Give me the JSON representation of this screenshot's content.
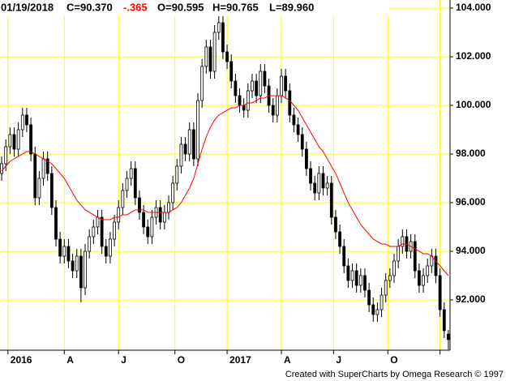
{
  "chart_data": {
    "type": "candlestick",
    "header": {
      "date": "01/19/2018",
      "close": "C=90.370",
      "change": "-.365",
      "open": "O=90.595",
      "high": "H=90.765",
      "low": "L=89.960"
    },
    "footer": "Created with SuperCharts by Omega Research © 1997",
    "ylim": [
      89.933,
      104.333
    ],
    "yticks": [
      {
        "value": 92,
        "label": "92.000"
      },
      {
        "value": 94,
        "label": "94.000"
      },
      {
        "value": 96,
        "label": "96.000"
      },
      {
        "value": 98,
        "label": "98.000"
      },
      {
        "value": 100,
        "label": "100.000"
      },
      {
        "value": 102,
        "label": "102.000"
      },
      {
        "value": 104,
        "label": "104.000"
      }
    ],
    "xlim": [
      -0.4,
      107.4
    ],
    "xticks": [
      {
        "value": 1.5,
        "label": "2016"
      },
      {
        "value": 15,
        "label": "A"
      },
      {
        "value": 28,
        "label": "J"
      },
      {
        "value": 41.5,
        "label": "O"
      },
      {
        "value": 54,
        "label": "2017"
      },
      {
        "value": 67,
        "label": "A"
      },
      {
        "value": 79.5,
        "label": "J"
      },
      {
        "value": 92.5,
        "label": "O"
      },
      {
        "value": 105,
        "label": null
      }
    ],
    "grid": true,
    "grid_color": "#ffff00",
    "up_color": "#ffffff",
    "down_color": "#000000",
    "open": [
      97.2,
      97.6,
      98.3,
      98.8,
      98.2,
      99.0,
      99.6,
      99.2,
      98.0,
      96.2,
      97.0,
      97.8,
      97.2,
      95.8,
      94.5,
      93.8,
      94.2,
      93.6,
      93.2,
      93.8,
      92.5,
      94.0,
      94.6,
      95.0,
      95.4,
      94.2,
      93.8,
      94.5,
      95.2,
      95.8,
      96.5,
      97.0,
      97.4,
      96.2,
      95.6,
      95.0,
      94.6,
      95.4,
      95.8,
      95.2,
      95.6,
      96.0,
      96.8,
      97.5,
      98.4,
      98.0,
      99.0,
      97.8,
      100.2,
      101.6,
      102.4,
      101.4,
      103.0,
      103.4,
      102.2,
      101.8,
      101.0,
      100.4,
      100.0,
      99.8,
      100.6,
      101.0,
      100.4,
      101.4,
      100.8,
      100.0,
      99.6,
      100.4,
      101.2,
      100.6,
      99.6,
      99.2,
      98.8,
      98.2,
      97.4,
      96.8,
      96.4,
      97.2,
      96.6,
      96.8,
      95.4,
      94.8,
      94.2,
      93.4,
      92.8,
      93.2,
      92.6,
      93.0,
      92.4,
      91.8,
      91.4,
      91.6,
      92.2,
      92.8,
      93.0,
      93.6,
      94.2,
      94.6,
      94.0,
      94.4,
      93.2,
      92.6,
      93.0,
      93.4,
      93.8,
      93.0,
      91.6,
      90.595
    ],
    "high": [
      97.9,
      98.6,
      99.1,
      99.1,
      99.3,
      99.9,
      99.9,
      99.5,
      98.3,
      97.3,
      98.1,
      98.1,
      97.5,
      96.1,
      94.8,
      94.5,
      94.5,
      93.9,
      94.1,
      94.1,
      94.3,
      94.9,
      95.3,
      95.7,
      95.7,
      94.5,
      94.8,
      95.5,
      96.1,
      96.8,
      97.3,
      97.7,
      97.7,
      96.5,
      95.9,
      95.3,
      95.7,
      96.1,
      96.1,
      95.9,
      96.3,
      97.1,
      97.8,
      98.7,
      98.7,
      99.3,
      99.3,
      100.5,
      101.9,
      102.7,
      102.7,
      103.3,
      103.7,
      103.7,
      102.5,
      102.1,
      101.3,
      100.7,
      100.3,
      100.9,
      101.3,
      101.3,
      101.7,
      101.7,
      101.1,
      100.3,
      100.7,
      101.5,
      101.5,
      100.9,
      99.9,
      99.5,
      99.1,
      98.5,
      97.7,
      97.1,
      97.5,
      97.5,
      97.1,
      97.1,
      95.7,
      95.1,
      94.5,
      93.7,
      93.5,
      93.5,
      93.3,
      93.3,
      92.7,
      92.1,
      91.9,
      92.5,
      93.1,
      93.3,
      93.9,
      94.5,
      94.9,
      94.9,
      94.7,
      94.7,
      93.5,
      93.3,
      93.7,
      94.1,
      94.1,
      93.3,
      91.9,
      90.765
    ],
    "low": [
      96.9,
      97.3,
      98.0,
      97.9,
      97.9,
      98.7,
      98.9,
      97.7,
      95.9,
      95.9,
      96.7,
      96.9,
      95.5,
      94.2,
      93.5,
      93.5,
      93.3,
      92.9,
      92.9,
      91.9,
      92.2,
      93.7,
      94.3,
      94.7,
      93.9,
      93.5,
      93.5,
      94.2,
      94.9,
      95.5,
      96.2,
      96.7,
      95.9,
      95.3,
      94.7,
      94.3,
      94.3,
      95.1,
      94.9,
      94.9,
      95.3,
      95.7,
      96.5,
      97.2,
      97.7,
      97.7,
      97.5,
      97.5,
      99.9,
      101.3,
      101.1,
      101.1,
      102.7,
      101.9,
      101.5,
      100.7,
      100.1,
      99.7,
      99.5,
      99.5,
      100.3,
      100.1,
      100.1,
      100.5,
      99.7,
      99.3,
      99.3,
      100.1,
      100.3,
      99.3,
      98.9,
      98.5,
      97.9,
      97.1,
      96.5,
      96.1,
      96.1,
      96.3,
      96.3,
      95.1,
      94.5,
      93.9,
      93.1,
      92.5,
      92.5,
      92.3,
      92.3,
      92.1,
      91.5,
      91.1,
      91.1,
      91.3,
      91.9,
      92.5,
      92.7,
      93.3,
      93.9,
      93.7,
      93.7,
      92.9,
      92.3,
      92.3,
      92.7,
      93.1,
      92.7,
      91.3,
      90.435,
      89.96
    ],
    "close": [
      97.6,
      98.3,
      98.8,
      98.2,
      99.0,
      99.6,
      99.2,
      98.0,
      96.2,
      97.0,
      97.8,
      97.2,
      95.8,
      94.5,
      93.8,
      94.2,
      93.6,
      93.2,
      93.8,
      92.5,
      94.0,
      94.6,
      95.0,
      95.4,
      94.2,
      93.8,
      94.5,
      95.2,
      95.8,
      96.5,
      97.0,
      97.4,
      96.2,
      95.6,
      95.0,
      94.6,
      95.4,
      95.8,
      95.2,
      95.6,
      96.0,
      96.8,
      97.5,
      98.4,
      98.0,
      99.0,
      97.8,
      100.2,
      101.6,
      102.4,
      101.4,
      103.0,
      103.4,
      102.2,
      101.8,
      101.0,
      100.4,
      100.0,
      99.8,
      100.6,
      101.0,
      100.4,
      101.4,
      100.8,
      100.0,
      99.6,
      100.4,
      101.2,
      100.6,
      99.6,
      99.2,
      98.8,
      98.2,
      97.4,
      96.8,
      96.4,
      97.2,
      96.6,
      96.8,
      95.4,
      94.8,
      94.2,
      93.4,
      92.8,
      93.2,
      92.6,
      93.0,
      92.4,
      91.8,
      91.4,
      91.6,
      92.2,
      92.8,
      93.0,
      93.6,
      94.2,
      94.6,
      94.0,
      94.4,
      93.2,
      92.6,
      93.0,
      93.4,
      93.8,
      93.0,
      91.6,
      90.735,
      90.37
    ],
    "average_line": {
      "color": "#ff0000",
      "values": [
        97.3,
        97.5,
        97.7,
        97.8,
        97.9,
        98.0,
        98.1,
        98.1,
        98.0,
        97.9,
        97.8,
        97.7,
        97.6,
        97.4,
        97.2,
        97.0,
        96.7,
        96.4,
        96.1,
        95.9,
        95.7,
        95.6,
        95.5,
        95.4,
        95.3,
        95.3,
        95.3,
        95.4,
        95.4,
        95.5,
        95.5,
        95.6,
        95.7,
        95.7,
        95.7,
        95.6,
        95.6,
        95.6,
        95.6,
        95.6,
        95.6,
        95.7,
        95.8,
        96.0,
        96.3,
        96.6,
        97.0,
        97.6,
        98.2,
        98.7,
        99.1,
        99.4,
        99.6,
        99.7,
        99.8,
        99.9,
        99.9,
        100.0,
        100.0,
        100.1,
        100.1,
        100.2,
        100.3,
        100.3,
        100.4,
        100.4,
        100.4,
        100.4,
        100.3,
        100.2,
        100.0,
        99.8,
        99.5,
        99.2,
        98.9,
        98.6,
        98.3,
        98.1,
        97.8,
        97.5,
        97.2,
        96.8,
        96.4,
        96.0,
        95.7,
        95.4,
        95.1,
        94.9,
        94.7,
        94.5,
        94.4,
        94.3,
        94.3,
        94.2,
        94.2,
        94.2,
        94.3,
        94.3,
        94.2,
        94.1,
        94.0,
        93.9,
        93.9,
        93.8,
        93.6,
        93.4,
        93.2,
        93.0
      ]
    }
  }
}
